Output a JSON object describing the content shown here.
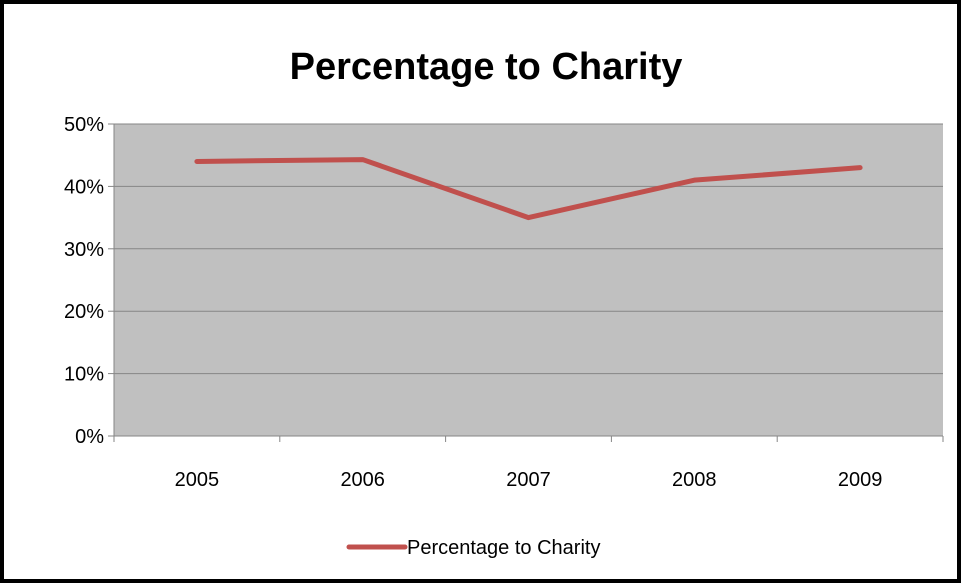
{
  "chart_data": {
    "type": "line",
    "title": "Percentage to Charity",
    "xlabel": "",
    "ylabel": "",
    "categories": [
      "2005",
      "2006",
      "2007",
      "2008",
      "2009"
    ],
    "series": [
      {
        "name": "Percentage to Charity",
        "values": [
          0.44,
          0.443,
          0.35,
          0.41,
          0.43
        ],
        "color": "#c0504d"
      }
    ],
    "ylim": [
      0,
      0.5
    ],
    "yticks": [
      0,
      0.1,
      0.2,
      0.3,
      0.4,
      0.5
    ],
    "ytick_labels": [
      "0%",
      "10%",
      "20%",
      "30%",
      "40%",
      "50%"
    ],
    "grid": true,
    "legend_position": "bottom",
    "plot_background": "#c0c0c0",
    "gridline_color": "#868686"
  }
}
